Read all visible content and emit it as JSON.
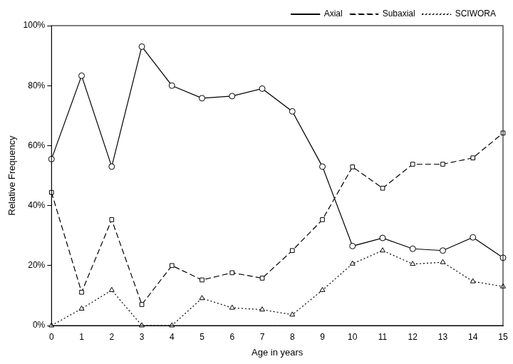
{
  "chart_data": {
    "type": "line",
    "x_label": "Age in years",
    "y_label": "Relative Frequency",
    "x": [
      0,
      1,
      2,
      3,
      4,
      5,
      6,
      7,
      8,
      9,
      10,
      11,
      12,
      13,
      14,
      15
    ],
    "xlim": [
      0,
      15
    ],
    "xticks": [
      0,
      1,
      2,
      3,
      4,
      5,
      6,
      7,
      8,
      9,
      10,
      11,
      12,
      13,
      14,
      15
    ],
    "ylim": [
      0,
      100
    ],
    "yticks": [
      {
        "value": 0,
        "label": "0%"
      },
      {
        "value": 20,
        "label": "20%"
      },
      {
        "value": 40,
        "label": "40%"
      },
      {
        "value": 60,
        "label": "60%"
      },
      {
        "value": 80,
        "label": "80%"
      },
      {
        "value": 100,
        "label": "100%"
      }
    ],
    "grid": false,
    "legend": "top-right",
    "series": [
      {
        "name": "Axial",
        "color": "#000000",
        "marker": "circle",
        "line_style": "solid",
        "values": [
          55.5,
          83.3,
          53,
          93,
          80,
          75.8,
          76.5,
          79,
          71.4,
          53,
          26.5,
          29.2,
          25.6,
          25,
          29.4,
          22.6
        ]
      },
      {
        "name": "Subaxial",
        "color": "#000000",
        "marker": "square",
        "line_style": "dashed",
        "values": [
          44.4,
          11.1,
          35.3,
          7,
          20,
          15.2,
          17.6,
          15.8,
          25,
          35.3,
          52.9,
          45.8,
          53.8,
          53.8,
          55.9,
          64.2
        ]
      },
      {
        "name": "SCIWORA",
        "color": "#000000",
        "marker": "triangle",
        "line_style": "dotted",
        "values": [
          0,
          5.6,
          11.8,
          0,
          0,
          9.1,
          5.9,
          5.3,
          3.6,
          11.8,
          20.6,
          25,
          20.5,
          21.1,
          14.7,
          13
        ]
      }
    ]
  }
}
